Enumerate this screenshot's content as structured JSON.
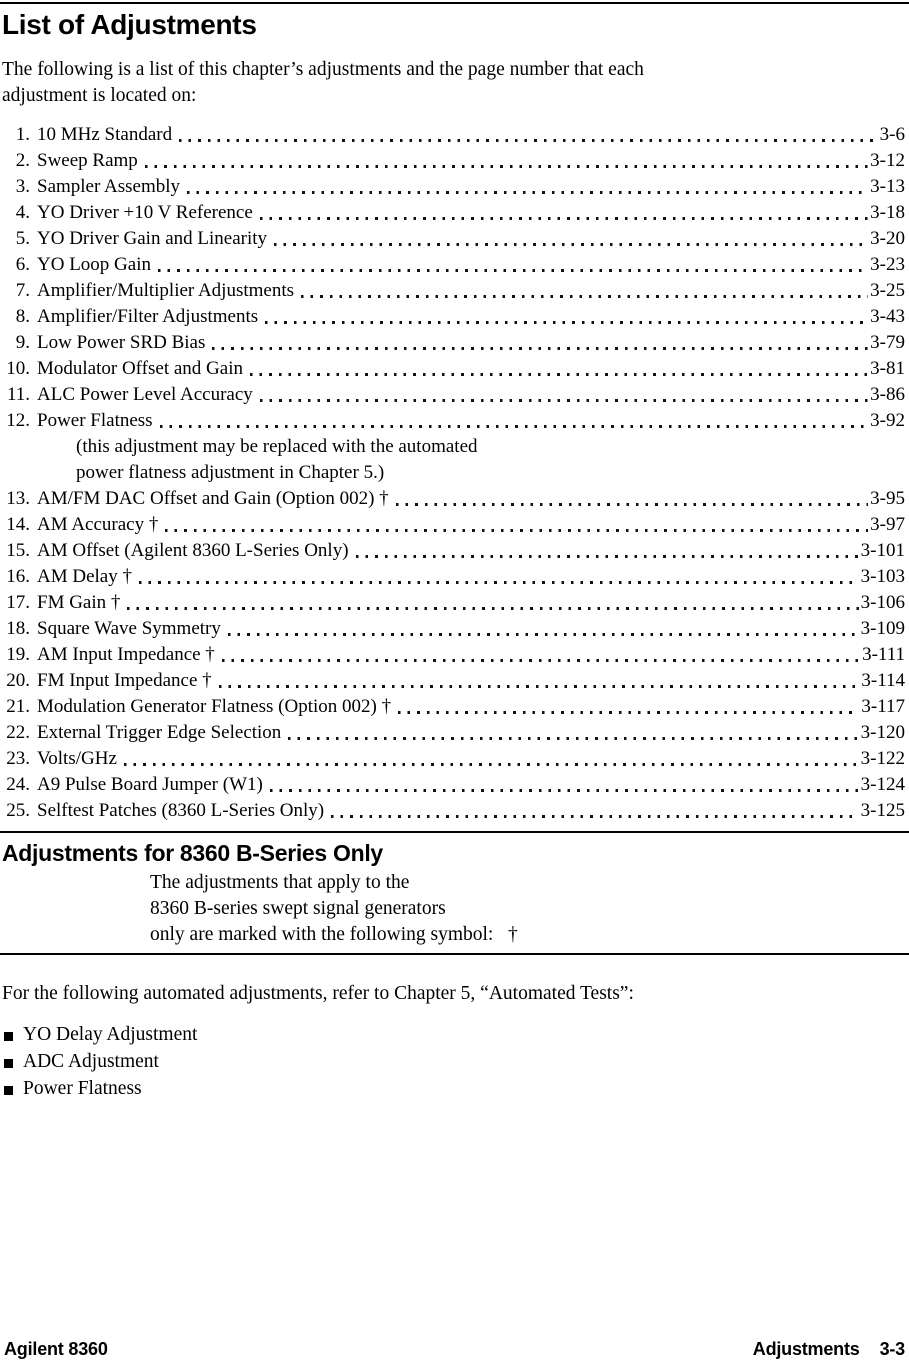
{
  "title": "List of Adjustments",
  "intro_lines": [
    "The following is a list of this chapter’s adjustments and the page number that each",
    "adjustment is located on:"
  ],
  "toc": [
    {
      "num": "1.",
      "label": "10 MHz Standard",
      "page": "3-6"
    },
    {
      "num": "2.",
      "label": "Sweep Ramp",
      "page": "3-12"
    },
    {
      "num": "3.",
      "label": "Sampler Assembly",
      "page": "3-13"
    },
    {
      "num": "4.",
      "label": "YO Driver +10 V Reference",
      "page": "3-18"
    },
    {
      "num": "5.",
      "label": "YO Driver Gain and Linearity",
      "page": "3-20"
    },
    {
      "num": "6.",
      "label": "YO Loop Gain",
      "page": "3-23"
    },
    {
      "num": "7.",
      "label": "Amplifier/Multiplier Adjustments",
      "page": "3-25"
    },
    {
      "num": "8.",
      "label": "Amplifier/Filter Adjustments",
      "page": "3-43"
    },
    {
      "num": "9.",
      "label": "Low Power SRD Bias",
      "page": "3-79"
    },
    {
      "num": "10.",
      "label": "Modulator Offset and Gain",
      "page": "3-81"
    },
    {
      "num": "11.",
      "label": "ALC Power Level Accuracy",
      "page": "3-86"
    },
    {
      "num": "12.",
      "label": "Power Flatness",
      "page": "3-92",
      "note_lines": [
        "(this adjustment may be replaced with the automated",
        "power flatness adjustment in Chapter 5.)"
      ]
    },
    {
      "num": "13.",
      "label": "AM/FM DAC Offset and Gain (Option 002) †",
      "page": "3-95"
    },
    {
      "num": "14.",
      "label": "AM Accuracy †",
      "page": "3-97"
    },
    {
      "num": "15.",
      "label": "AM Offset (Agilent 8360 L-Series Only)",
      "page": "3-101"
    },
    {
      "num": "16.",
      "label": "AM Delay †",
      "page": "3-103"
    },
    {
      "num": "17.",
      "label": "FM Gain †",
      "page": "3-106"
    },
    {
      "num": "18.",
      "label": "Square Wave Symmetry",
      "page": "3-109"
    },
    {
      "num": "19.",
      "label": "AM Input Impedance †",
      "page": "3-111"
    },
    {
      "num": "20.",
      "label": "FM Input Impedance †",
      "page": "3-114"
    },
    {
      "num": "21.",
      "label": "Modulation Generator Flatness (Option 002) †",
      "page": "3-117"
    },
    {
      "num": "22.",
      "label": "External Trigger Edge Selection",
      "page": "3-120"
    },
    {
      "num": "23.",
      "label": "Volts/GHz",
      "page": "3-122"
    },
    {
      "num": "24.",
      "label": "A9 Pulse Board Jumper (W1)",
      "page": "3-124"
    },
    {
      "num": "25.",
      "label": "Selftest Patches (8360 L-Series Only)",
      "page": "3-125"
    }
  ],
  "bseries": {
    "heading": "Adjustments for 8360 B-Series Only",
    "lines": [
      "The adjustments that apply to the",
      "8360 B-series swept signal generators",
      "only are marked with the following symbol:   †"
    ]
  },
  "automated": {
    "intro": "For the following automated adjustments, refer to Chapter 5, “Automated Tests”:",
    "items": [
      "YO Delay Adjustment",
      "ADC Adjustment",
      "Power Flatness"
    ]
  },
  "footer": {
    "left": "Agilent 8360",
    "right_label": "Adjustments",
    "right_page": "3-3"
  }
}
